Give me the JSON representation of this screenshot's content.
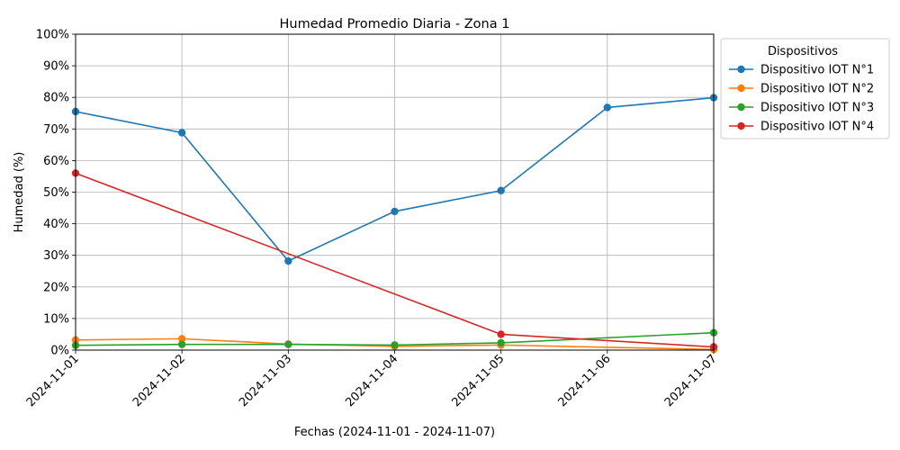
{
  "chart_data": {
    "type": "line",
    "title": "Humedad Promedio Diaria - Zona 1",
    "xlabel": "Fechas (2024-11-01 - 2024-11-07)",
    "ylabel": "Humedad (%)",
    "x": [
      "2024-11-01",
      "2024-11-02",
      "2024-11-03",
      "2024-11-04",
      "2024-11-05",
      "2024-11-06",
      "2024-11-07"
    ],
    "yticks": [
      "0%",
      "10%",
      "20%",
      "30%",
      "40%",
      "50%",
      "60%",
      "70%",
      "80%",
      "90%",
      "100%"
    ],
    "ylim": [
      0,
      100
    ],
    "grid": true,
    "legend": {
      "title": "Dispositivos",
      "placement": "outside-right-top"
    },
    "series": [
      {
        "name": "Dispositivo IOT N°1",
        "color": "#1f77b4",
        "points": [
          [
            "2024-11-01",
            75.5
          ],
          [
            "2024-11-02",
            68.8
          ],
          [
            "2024-11-03",
            28.2
          ],
          [
            "2024-11-04",
            43.9
          ],
          [
            "2024-11-05",
            50.5
          ],
          [
            "2024-11-06",
            76.8
          ],
          [
            "2024-11-07",
            79.9
          ]
        ]
      },
      {
        "name": "Dispositivo IOT N°2",
        "color": "#ff7f0e",
        "points": [
          [
            "2024-11-01",
            3.2
          ],
          [
            "2024-11-02",
            3.6
          ],
          [
            "2024-11-03",
            1.9
          ],
          [
            "2024-11-04",
            1.2
          ],
          [
            "2024-11-05",
            1.6
          ],
          [
            "2024-11-07",
            0.2
          ]
        ]
      },
      {
        "name": "Dispositivo IOT N°3",
        "color": "#2ca02c",
        "points": [
          [
            "2024-11-01",
            1.5
          ],
          [
            "2024-11-02",
            1.8
          ],
          [
            "2024-11-03",
            1.8
          ],
          [
            "2024-11-04",
            1.6
          ],
          [
            "2024-11-05",
            2.3
          ],
          [
            "2024-11-07",
            5.5
          ]
        ]
      },
      {
        "name": "Dispositivo IOT N°4",
        "color": "#d62728",
        "points": [
          [
            "2024-11-01",
            56.0
          ],
          [
            "2024-11-05",
            5.0
          ],
          [
            "2024-11-07",
            1.0
          ]
        ]
      }
    ]
  }
}
